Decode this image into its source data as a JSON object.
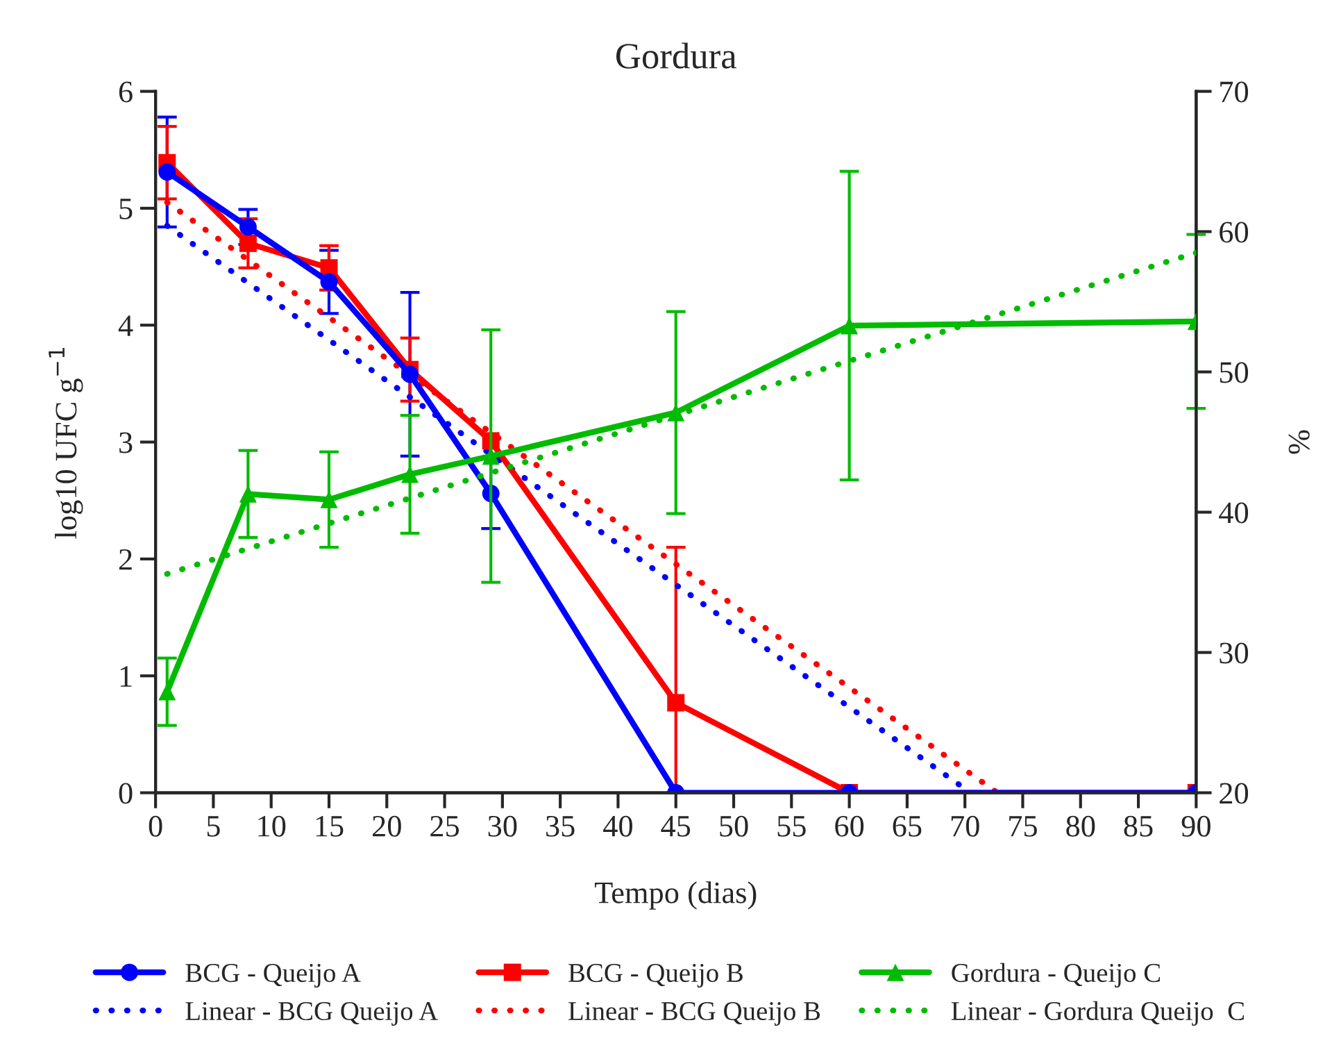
{
  "chart_data": {
    "type": "line",
    "title": "Gordura",
    "xlabel": "Tempo (dias)",
    "ylabel": "log10 UFC g$^{−1}$",
    "y2label": "%",
    "x": [
      1,
      8,
      15,
      22,
      29,
      45,
      60,
      90
    ],
    "xlim": [
      0,
      90
    ],
    "xticks": [
      0,
      5,
      10,
      15,
      20,
      25,
      30,
      35,
      40,
      45,
      50,
      55,
      60,
      65,
      70,
      75,
      80,
      85,
      90
    ],
    "ylim": [
      0,
      6
    ],
    "yticks": [
      0,
      1,
      2,
      3,
      4,
      5,
      6
    ],
    "y2lim": [
      20,
      70
    ],
    "y2ticks": [
      20,
      30,
      40,
      50,
      60,
      70
    ],
    "grid": false,
    "legend": "bottom",
    "series": [
      {
        "name": "BCG - Queijo A",
        "color": "#0000ff",
        "marker": "circle",
        "line_style": "solid",
        "values": [
          5.31,
          4.84,
          4.37,
          3.58,
          2.56,
          0,
          0,
          0
        ],
        "errors": [
          0.47,
          0.15,
          0.27,
          0.7,
          0.3,
          null,
          null,
          null
        ]
      },
      {
        "name": "BCG - Queijo B",
        "color": "#ff0000",
        "marker": "square",
        "line_style": "solid",
        "values": [
          5.39,
          4.7,
          4.49,
          3.62,
          3.01,
          0.77,
          0,
          0
        ],
        "errors": [
          0.31,
          0.21,
          0.19,
          0.27,
          null,
          [
            0,
            2.1
          ],
          null,
          null
        ]
      },
      {
        "name": "Gordura - Queijo C",
        "color": "#00bb00",
        "marker": "triangle",
        "line_style": "solid",
        "axis": "y2",
        "values": [
          27.2,
          41.3,
          40.9,
          42.7,
          44.0,
          47.1,
          53.3,
          53.6
        ],
        "errors": [
          2.4,
          3.1,
          3.4,
          4.2,
          9.0,
          7.2,
          11.0,
          6.2
        ]
      },
      {
        "name": "Linear - BCG Queijo A",
        "color": "#0000ff",
        "marker": "none",
        "line_style": "dotted",
        "x": [
          1,
          70.5
        ],
        "values": [
          4.85,
          0
        ]
      },
      {
        "name": "Linear - BCG Queijo B",
        "color": "#ff0000",
        "marker": "none",
        "line_style": "dotted",
        "x": [
          1,
          72.8
        ],
        "values": [
          5.05,
          0
        ]
      },
      {
        "name": "Linear - Gordura Queijo  C",
        "color": "#00bb00",
        "marker": "none",
        "line_style": "dotted",
        "axis": "y2",
        "x": [
          1,
          90
        ],
        "values": [
          35.6,
          58.5
        ]
      }
    ]
  }
}
